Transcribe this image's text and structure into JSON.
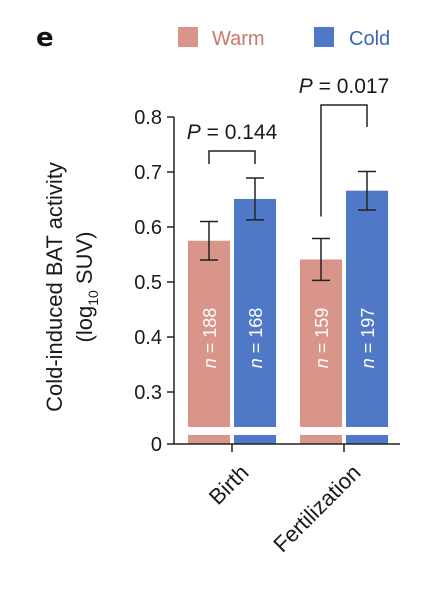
{
  "panel_label": "e",
  "chart_data": {
    "type": "bar",
    "ylabel_line1": "Cold-induced BAT activity",
    "ylabel_line2_pre": "(log",
    "ylabel_line2_sub": "10",
    "ylabel_line2_post": " SUV)",
    "ylim": [
      0,
      0.8
    ],
    "y_axis_break": true,
    "yticks": [
      "0",
      "0.3",
      "0.4",
      "0.5",
      "0.6",
      "0.7",
      "0.8"
    ],
    "ytick_values": [
      0,
      0.3,
      0.4,
      0.5,
      0.6,
      0.7,
      0.8
    ],
    "categories": [
      "Birth",
      "Fertilization"
    ],
    "series": [
      {
        "name": "Warm",
        "color": "#d9958a",
        "values": [
          0.575,
          0.541
        ],
        "err": [
          0.035,
          0.038
        ],
        "n_labels": [
          "188",
          "159"
        ]
      },
      {
        "name": "Cold",
        "color": "#4f79c6",
        "values": [
          0.651,
          0.666
        ],
        "err": [
          0.038,
          0.035
        ],
        "n_labels": [
          "168",
          "197"
        ]
      }
    ],
    "n_prefix": "n",
    "n_sep": " = ",
    "annotations": [
      {
        "category_index": 0,
        "text_prefix": "P",
        "text_value": " = 0.144"
      },
      {
        "category_index": 1,
        "text_prefix": "P",
        "text_value": " = 0.017"
      }
    ],
    "legend_position": "top-right"
  }
}
